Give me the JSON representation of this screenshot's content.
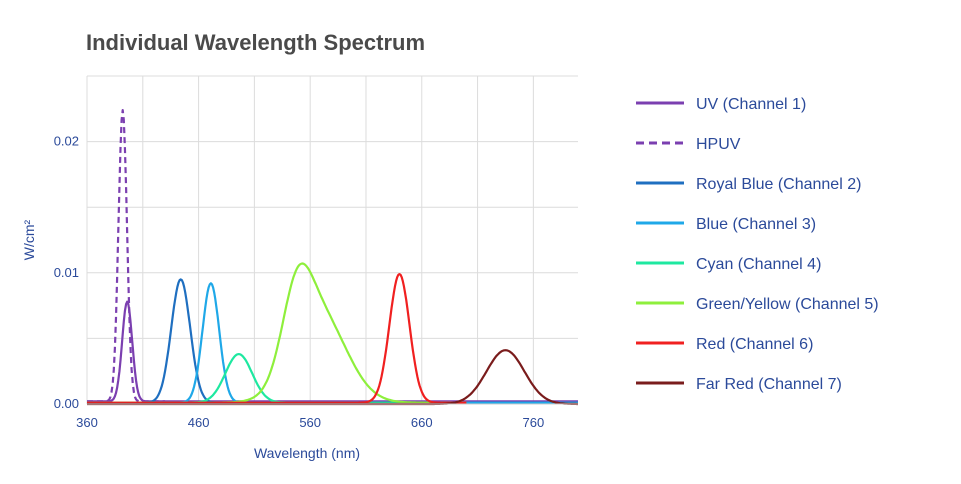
{
  "chart_data": {
    "type": "line",
    "title": "Individual Wavelength Spectrum",
    "xlabel": "Wavelength (nm)",
    "ylabel": "W/cm²",
    "xlim": [
      360,
      800
    ],
    "ylim": [
      0,
      0.025
    ],
    "x_ticks": [
      360,
      460,
      560,
      660,
      760
    ],
    "x_tick_labels": [
      "360",
      "460",
      "560",
      "660",
      "760"
    ],
    "y_ticks": [
      0,
      0.01,
      0.02
    ],
    "y_tick_labels": [
      "0.00",
      "0.01",
      "0.02"
    ],
    "grid": true,
    "legend_position": "right",
    "series": [
      {
        "name": "UV (Channel 1)",
        "color": "#7b3fb0",
        "dash": "solid",
        "peaks": [
          {
            "center": 396,
            "height": 0.0076,
            "sigma": 4.5
          }
        ],
        "baseline": 0.0002,
        "range": [
          360,
          800
        ]
      },
      {
        "name": "HPUV",
        "color": "#7b3fb0",
        "dash": "dashed",
        "peaks": [
          {
            "center": 392,
            "height": 0.0222,
            "sigma": 3.8
          }
        ],
        "baseline": 0.0002,
        "range": [
          360,
          430
        ]
      },
      {
        "name": "Royal Blue (Channel 2)",
        "color": "#1f6fc0",
        "dash": "solid",
        "peaks": [
          {
            "center": 444,
            "height": 0.0094,
            "sigma": 8.5
          }
        ],
        "baseline": 0.0001,
        "range": [
          360,
          800
        ]
      },
      {
        "name": "Blue (Channel 3)",
        "color": "#1fa8e8",
        "dash": "solid",
        "peaks": [
          {
            "center": 471,
            "height": 0.0091,
            "sigma": 7.5
          }
        ],
        "baseline": 0.0001,
        "range": [
          360,
          800
        ]
      },
      {
        "name": "Cyan (Channel 4)",
        "color": "#1ee8a0",
        "dash": "solid",
        "peaks": [
          {
            "center": 496,
            "height": 0.0037,
            "sigma": 12
          }
        ],
        "baseline": 0.0001,
        "range": [
          360,
          700
        ]
      },
      {
        "name": "Green/Yellow (Channel 5)",
        "color": "#8eef3c",
        "dash": "solid",
        "peaks": [
          {
            "center": 548,
            "height": 0.0054,
            "sigma": 13
          },
          {
            "center": 568,
            "height": 0.0068,
            "sigma": 24
          }
        ],
        "baseline": 0.0001,
        "range": [
          360,
          700
        ]
      },
      {
        "name": "Red (Channel 6)",
        "color": "#f02020",
        "dash": "solid",
        "peaks": [
          {
            "center": 640,
            "height": 0.0098,
            "sigma": 9
          }
        ],
        "baseline": 0.0001,
        "range": [
          360,
          700
        ]
      },
      {
        "name": "Far Red (Channel 7)",
        "color": "#7a1c1c",
        "dash": "solid",
        "peaks": [
          {
            "center": 735,
            "height": 0.0041,
            "sigma": 17
          }
        ],
        "baseline": 0.0,
        "range": [
          360,
          800
        ]
      }
    ]
  }
}
